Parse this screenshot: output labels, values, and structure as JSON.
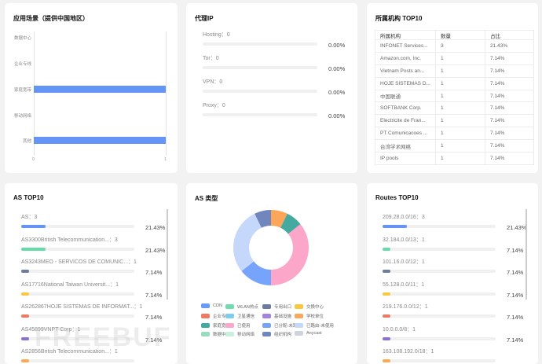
{
  "scenario": {
    "title": "应用场景（提供中国地区）",
    "chart_data": {
      "type": "bar",
      "orientation": "horizontal",
      "categories": [
        "数据中心",
        "企业专线",
        "家庭宽带",
        "移动网络",
        "其他"
      ],
      "values": [
        0,
        0,
        1,
        0,
        1
      ],
      "xlim": [
        0,
        1
      ],
      "xticks": [
        "0",
        "1"
      ],
      "color": "#6495f6"
    }
  },
  "proxy": {
    "title": "代理IP",
    "items": [
      {
        "label": "Hosting：0",
        "pct": "0.00%",
        "value": 0
      },
      {
        "label": "Tor：0",
        "pct": "0.00%",
        "value": 0
      },
      {
        "label": "VPN：0",
        "pct": "0.00%",
        "value": 0
      },
      {
        "label": "Proxy：0",
        "pct": "0.00%",
        "value": 0
      }
    ]
  },
  "org": {
    "title": "所属机构 TOP10",
    "headers": [
      "所属机构",
      "数量",
      "占比"
    ],
    "rows": [
      [
        "INFONET Services...",
        "3",
        "21.43%"
      ],
      [
        "Amazon.com, Inc.",
        "1",
        "7.14%"
      ],
      [
        "Vietnam Posts an...",
        "1",
        "7.14%"
      ],
      [
        "HOJE SISTEMAS D...",
        "1",
        "7.14%"
      ],
      [
        "中国联通",
        "1",
        "7.14%"
      ],
      [
        "SOFTBANK Corp.",
        "1",
        "7.14%"
      ],
      [
        "Electricite de Fran...",
        "1",
        "7.14%"
      ],
      [
        "PT Comunicacoes ...",
        "1",
        "7.14%"
      ],
      [
        "台湾学术网络",
        "1",
        "7.14%"
      ],
      [
        "IP pools",
        "1",
        "7.14%"
      ]
    ]
  },
  "as": {
    "title": "AS TOP10",
    "items": [
      {
        "label": "AS：3",
        "pct": "21.43%",
        "value": 21.43,
        "color": "#6495f6"
      },
      {
        "label": "AS3300British Telecommunication...：3",
        "pct": "21.43%",
        "value": 21.43,
        "color": "#66dbaa"
      },
      {
        "label": "AS3243MEO - SERVICOS DE COMUNIC...：1",
        "pct": "7.14%",
        "value": 7.14,
        "color": "#6b7c9e"
      },
      {
        "label": "AS17716National Taiwan Universit...：1",
        "pct": "7.14%",
        "value": 7.14,
        "color": "#f9c840"
      },
      {
        "label": "AS262867HOJE SISTEMAS DE INFORMAT...：1",
        "pct": "7.14%",
        "value": 7.14,
        "color": "#ee7a62"
      },
      {
        "label": "AS45899VNPT Corp：1",
        "pct": "7.14%",
        "value": 7.14,
        "color": "#8a6fd8"
      },
      {
        "label": "AS2856British Telecommunication...：1",
        "pct": "",
        "value": 7.14,
        "color": "#ffa852"
      }
    ]
  },
  "astype": {
    "title": "AS 类型",
    "chart_data": {
      "type": "pie",
      "donut": true,
      "slices": [
        {
          "name": "学校单位",
          "value": 1,
          "color": "#fca65a"
        },
        {
          "name": "家庭宽带",
          "value": 1,
          "color": "#44aa9f"
        },
        {
          "name": "已使用",
          "value": 5,
          "color": "#fca6ca"
        },
        {
          "name": "已分配-未路由",
          "value": 2,
          "color": "#76a3fb"
        },
        {
          "name": "已路由-未使用",
          "value": 4,
          "color": "#c5d8fc"
        },
        {
          "name": "组织机构",
          "value": 1,
          "color": "#7086bd"
        }
      ],
      "legend": [
        {
          "name": "CDN",
          "color": "#6b9af6"
        },
        {
          "name": "WLAN热点",
          "color": "#6fdcb0"
        },
        {
          "name": "专用出口",
          "color": "#6b7c9e"
        },
        {
          "name": "交换中心",
          "color": "#f9c840"
        },
        {
          "name": "企业专线",
          "color": "#ee7a62"
        },
        {
          "name": "卫星通信",
          "color": "#7ccdf0"
        },
        {
          "name": "基础设施",
          "color": "#a184de"
        },
        {
          "name": "学校单位",
          "color": "#fca65a"
        },
        {
          "name": "家庭宽带",
          "color": "#44aa9f"
        },
        {
          "name": "已使用",
          "color": "#fca6ca"
        },
        {
          "name": "已分配-未路由",
          "color": "#76a3fb"
        },
        {
          "name": "已路由-未使用",
          "color": "#c5d8fc"
        },
        {
          "name": "数据中心",
          "color": "#99dbbf"
        },
        {
          "name": "移动网络",
          "color": "#c8f0dd"
        },
        {
          "name": "组织机构",
          "color": "#7086bd"
        },
        {
          "name": "Anycast",
          "color": "#cfd3de"
        }
      ],
      "legend_position": "bottom"
    }
  },
  "routes": {
    "title": "Routes TOP10",
    "items": [
      {
        "label": "209.28.0.0/16：3",
        "pct": "21.43%",
        "value": 21.43,
        "color": "#6495f6"
      },
      {
        "label": "32.184.0.0/13：1",
        "pct": "7.14%",
        "value": 7.14,
        "color": "#66dbaa"
      },
      {
        "label": "101.16.0.0/12：1",
        "pct": "7.14%",
        "value": 7.14,
        "color": "#6b7c9e"
      },
      {
        "label": "55.128.0.0/11：1",
        "pct": "7.14%",
        "value": 7.14,
        "color": "#f9c840"
      },
      {
        "label": "219.176.0.0/12：1",
        "pct": "7.14%",
        "value": 7.14,
        "color": "#ee7a62"
      },
      {
        "label": "10.0.0.0/8：1",
        "pct": "7.14%",
        "value": 7.14,
        "color": "#8a6fd8"
      },
      {
        "label": "163.108.192.0/18：1",
        "pct": "",
        "value": 7.14,
        "color": "#ffa852"
      }
    ]
  },
  "watermark": "FREEBUF"
}
